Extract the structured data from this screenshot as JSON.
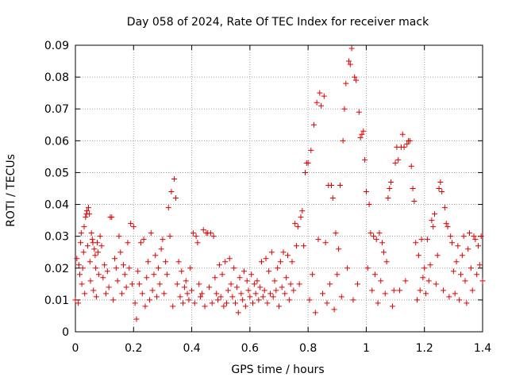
{
  "chart_data": {
    "type": "scatter",
    "title": "Day 058 of 2024, Rate Of TEC Index for receiver mack",
    "xlabel": "GPS time / hours",
    "ylabel": "ROTI / TECUs",
    "xlim": [
      0,
      1.4
    ],
    "ylim": [
      0,
      0.09
    ],
    "x_ticks": [
      0,
      0.2,
      0.4,
      0.6,
      0.8,
      1.0,
      1.2,
      1.4
    ],
    "x_tick_labels": [
      "0",
      "0.2",
      "0.4",
      "0.6",
      "0.8",
      "1",
      "1.2",
      "1.4"
    ],
    "y_ticks": [
      0,
      0.01,
      0.02,
      0.03,
      0.04,
      0.05,
      0.06,
      0.07,
      0.08,
      0.09
    ],
    "y_tick_labels": [
      "0",
      "0.01",
      "0.02",
      "0.03",
      "0.04",
      "0.05",
      "0.06",
      "0.07",
      "0.08",
      "0.09"
    ],
    "grid": true,
    "marker": "+",
    "series_color": "#e00000",
    "series": [
      {
        "name": "ROTI",
        "points": [
          [
            0.0,
            0.01
          ],
          [
            0.005,
            0.023
          ],
          [
            0.01,
            0.009
          ],
          [
            0.012,
            0.021
          ],
          [
            0.015,
            0.018
          ],
          [
            0.018,
            0.028
          ],
          [
            0.02,
            0.031
          ],
          [
            0.022,
            0.015
          ],
          [
            0.025,
            0.02
          ],
          [
            0.028,
            0.025
          ],
          [
            0.03,
            0.033
          ],
          [
            0.032,
            0.012
          ],
          [
            0.035,
            0.036
          ],
          [
            0.038,
            0.037
          ],
          [
            0.04,
            0.038
          ],
          [
            0.042,
            0.027
          ],
          [
            0.045,
            0.039
          ],
          [
            0.048,
            0.037
          ],
          [
            0.05,
            0.022
          ],
          [
            0.052,
            0.016
          ],
          [
            0.055,
            0.031
          ],
          [
            0.058,
            0.029
          ],
          [
            0.06,
            0.028
          ],
          [
            0.062,
            0.013
          ],
          [
            0.065,
            0.026
          ],
          [
            0.068,
            0.024
          ],
          [
            0.07,
            0.02
          ],
          [
            0.072,
            0.011
          ],
          [
            0.075,
            0.028
          ],
          [
            0.078,
            0.025
          ],
          [
            0.08,
            0.018
          ],
          [
            0.085,
            0.03
          ],
          [
            0.09,
            0.027
          ],
          [
            0.095,
            0.017
          ],
          [
            0.1,
            0.021
          ],
          [
            0.105,
            0.012
          ],
          [
            0.11,
            0.019
          ],
          [
            0.115,
            0.014
          ],
          [
            0.12,
            0.036
          ],
          [
            0.125,
            0.036
          ],
          [
            0.13,
            0.01
          ],
          [
            0.135,
            0.023
          ],
          [
            0.14,
            0.02
          ],
          [
            0.145,
            0.016
          ],
          [
            0.15,
            0.03
          ],
          [
            0.155,
            0.025
          ],
          [
            0.16,
            0.012
          ],
          [
            0.165,
            0.021
          ],
          [
            0.17,
            0.018
          ],
          [
            0.175,
            0.014
          ],
          [
            0.18,
            0.028
          ],
          [
            0.185,
            0.02
          ],
          [
            0.19,
            0.034
          ],
          [
            0.195,
            0.015
          ],
          [
            0.2,
            0.033
          ],
          [
            0.205,
            0.009
          ],
          [
            0.21,
            0.004
          ],
          [
            0.215,
            0.019
          ],
          [
            0.22,
            0.015
          ],
          [
            0.225,
            0.028
          ],
          [
            0.23,
            0.012
          ],
          [
            0.235,
            0.029
          ],
          [
            0.24,
            0.008
          ],
          [
            0.245,
            0.017
          ],
          [
            0.25,
            0.022
          ],
          [
            0.255,
            0.01
          ],
          [
            0.26,
            0.031
          ],
          [
            0.265,
            0.013
          ],
          [
            0.27,
            0.018
          ],
          [
            0.275,
            0.024
          ],
          [
            0.28,
            0.011
          ],
          [
            0.285,
            0.02
          ],
          [
            0.29,
            0.015
          ],
          [
            0.295,
            0.026
          ],
          [
            0.3,
            0.029
          ],
          [
            0.305,
            0.012
          ],
          [
            0.31,
            0.022
          ],
          [
            0.315,
            0.018
          ],
          [
            0.32,
            0.039
          ],
          [
            0.325,
            0.03
          ],
          [
            0.33,
            0.044
          ],
          [
            0.335,
            0.008
          ],
          [
            0.34,
            0.048
          ],
          [
            0.345,
            0.042
          ],
          [
            0.35,
            0.015
          ],
          [
            0.355,
            0.022
          ],
          [
            0.36,
            0.011
          ],
          [
            0.365,
            0.019
          ],
          [
            0.37,
            0.009
          ],
          [
            0.375,
            0.014
          ],
          [
            0.38,
            0.016
          ],
          [
            0.385,
            0.012
          ],
          [
            0.39,
            0.01
          ],
          [
            0.395,
            0.02
          ],
          [
            0.4,
            0.013
          ],
          [
            0.405,
            0.031
          ],
          [
            0.41,
            0.009
          ],
          [
            0.415,
            0.03
          ],
          [
            0.42,
            0.028
          ],
          [
            0.425,
            0.015
          ],
          [
            0.43,
            0.011
          ],
          [
            0.435,
            0.012
          ],
          [
            0.44,
            0.032
          ],
          [
            0.445,
            0.008
          ],
          [
            0.45,
            0.031
          ],
          [
            0.455,
            0.031
          ],
          [
            0.46,
            0.014
          ],
          [
            0.465,
            0.031
          ],
          [
            0.47,
            0.009
          ],
          [
            0.475,
            0.03
          ],
          [
            0.48,
            0.017
          ],
          [
            0.485,
            0.012
          ],
          [
            0.49,
            0.01
          ],
          [
            0.495,
            0.021
          ],
          [
            0.5,
            0.011
          ],
          [
            0.505,
            0.018
          ],
          [
            0.51,
            0.008
          ],
          [
            0.515,
            0.022
          ],
          [
            0.52,
            0.009
          ],
          [
            0.525,
            0.013
          ],
          [
            0.53,
            0.023
          ],
          [
            0.535,
            0.015
          ],
          [
            0.54,
            0.011
          ],
          [
            0.545,
            0.02
          ],
          [
            0.55,
            0.009
          ],
          [
            0.555,
            0.014
          ],
          [
            0.56,
            0.006
          ],
          [
            0.565,
            0.017
          ],
          [
            0.57,
            0.012
          ],
          [
            0.575,
            0.01
          ],
          [
            0.58,
            0.019
          ],
          [
            0.585,
            0.008
          ],
          [
            0.59,
            0.016
          ],
          [
            0.595,
            0.013
          ],
          [
            0.6,
            0.011
          ],
          [
            0.605,
            0.018
          ],
          [
            0.61,
            0.009
          ],
          [
            0.615,
            0.015
          ],
          [
            0.62,
            0.012
          ],
          [
            0.625,
            0.016
          ],
          [
            0.63,
            0.01
          ],
          [
            0.635,
            0.014
          ],
          [
            0.64,
            0.022
          ],
          [
            0.645,
            0.011
          ],
          [
            0.65,
            0.013
          ],
          [
            0.655,
            0.023
          ],
          [
            0.66,
            0.009
          ],
          [
            0.665,
            0.019
          ],
          [
            0.67,
            0.012
          ],
          [
            0.675,
            0.025
          ],
          [
            0.68,
            0.011
          ],
          [
            0.685,
            0.016
          ],
          [
            0.69,
            0.013
          ],
          [
            0.695,
            0.02
          ],
          [
            0.7,
            0.008
          ],
          [
            0.705,
            0.022
          ],
          [
            0.71,
            0.014
          ],
          [
            0.715,
            0.025
          ],
          [
            0.72,
            0.012
          ],
          [
            0.725,
            0.017
          ],
          [
            0.73,
            0.024
          ],
          [
            0.735,
            0.01
          ],
          [
            0.74,
            0.015
          ],
          [
            0.745,
            0.022
          ],
          [
            0.75,
            0.013
          ],
          [
            0.755,
            0.034
          ],
          [
            0.76,
            0.027
          ],
          [
            0.765,
            0.033
          ],
          [
            0.77,
            0.015
          ],
          [
            0.775,
            0.036
          ],
          [
            0.78,
            0.038
          ],
          [
            0.785,
            0.027
          ],
          [
            0.79,
            0.05
          ],
          [
            0.795,
            0.053
          ],
          [
            0.8,
            0.053
          ],
          [
            0.805,
            0.01
          ],
          [
            0.81,
            0.057
          ],
          [
            0.815,
            0.018
          ],
          [
            0.82,
            0.065
          ],
          [
            0.825,
            0.006
          ],
          [
            0.83,
            0.072
          ],
          [
            0.835,
            0.029
          ],
          [
            0.84,
            0.075
          ],
          [
            0.845,
            0.071
          ],
          [
            0.85,
            0.012
          ],
          [
            0.855,
            0.074
          ],
          [
            0.86,
            0.028
          ],
          [
            0.865,
            0.009
          ],
          [
            0.87,
            0.046
          ],
          [
            0.875,
            0.015
          ],
          [
            0.88,
            0.046
          ],
          [
            0.885,
            0.042
          ],
          [
            0.89,
            0.007
          ],
          [
            0.895,
            0.031
          ],
          [
            0.9,
            0.018
          ],
          [
            0.905,
            0.026
          ],
          [
            0.91,
            0.046
          ],
          [
            0.915,
            0.011
          ],
          [
            0.92,
            0.06
          ],
          [
            0.925,
            0.07
          ],
          [
            0.93,
            0.078
          ],
          [
            0.935,
            0.02
          ],
          [
            0.94,
            0.085
          ],
          [
            0.945,
            0.084
          ],
          [
            0.95,
            0.089
          ],
          [
            0.955,
            0.01
          ],
          [
            0.96,
            0.08
          ],
          [
            0.965,
            0.079
          ],
          [
            0.97,
            0.015
          ],
          [
            0.975,
            0.069
          ],
          [
            0.98,
            0.061
          ],
          [
            0.985,
            0.062
          ],
          [
            0.99,
            0.063
          ],
          [
            0.995,
            0.054
          ],
          [
            1.0,
            0.044
          ],
          [
            1.005,
            0.02
          ],
          [
            1.01,
            0.04
          ],
          [
            1.015,
            0.031
          ],
          [
            1.02,
            0.013
          ],
          [
            1.025,
            0.03
          ],
          [
            1.03,
            0.018
          ],
          [
            1.035,
            0.029
          ],
          [
            1.04,
            0.009
          ],
          [
            1.045,
            0.031
          ],
          [
            1.05,
            0.016
          ],
          [
            1.055,
            0.028
          ],
          [
            1.06,
            0.025
          ],
          [
            1.065,
            0.012
          ],
          [
            1.07,
            0.022
          ],
          [
            1.075,
            0.042
          ],
          [
            1.08,
            0.045
          ],
          [
            1.085,
            0.047
          ],
          [
            1.09,
            0.008
          ],
          [
            1.095,
            0.013
          ],
          [
            1.1,
            0.053
          ],
          [
            1.105,
            0.058
          ],
          [
            1.11,
            0.054
          ],
          [
            1.115,
            0.013
          ],
          [
            1.12,
            0.058
          ],
          [
            1.125,
            0.062
          ],
          [
            1.13,
            0.058
          ],
          [
            1.135,
            0.016
          ],
          [
            1.14,
            0.059
          ],
          [
            1.145,
            0.06
          ],
          [
            1.15,
            0.06
          ],
          [
            1.155,
            0.052
          ],
          [
            1.16,
            0.045
          ],
          [
            1.165,
            0.041
          ],
          [
            1.17,
            0.028
          ],
          [
            1.175,
            0.01
          ],
          [
            1.18,
            0.024
          ],
          [
            1.185,
            0.013
          ],
          [
            1.19,
            0.029
          ],
          [
            1.195,
            0.017
          ],
          [
            1.2,
            0.02
          ],
          [
            1.205,
            0.012
          ],
          [
            1.21,
            0.029
          ],
          [
            1.215,
            0.016
          ],
          [
            1.22,
            0.021
          ],
          [
            1.225,
            0.035
          ],
          [
            1.23,
            0.033
          ],
          [
            1.235,
            0.037
          ],
          [
            1.24,
            0.015
          ],
          [
            1.245,
            0.024
          ],
          [
            1.25,
            0.045
          ],
          [
            1.255,
            0.047
          ],
          [
            1.26,
            0.044
          ],
          [
            1.265,
            0.013
          ],
          [
            1.27,
            0.039
          ],
          [
            1.275,
            0.034
          ],
          [
            1.28,
            0.033
          ],
          [
            1.285,
            0.011
          ],
          [
            1.29,
            0.03
          ],
          [
            1.295,
            0.028
          ],
          [
            1.3,
            0.019
          ],
          [
            1.305,
            0.012
          ],
          [
            1.31,
            0.022
          ],
          [
            1.315,
            0.027
          ],
          [
            1.32,
            0.01
          ],
          [
            1.325,
            0.018
          ],
          [
            1.33,
            0.024
          ],
          [
            1.335,
            0.03
          ],
          [
            1.34,
            0.016
          ],
          [
            1.345,
            0.009
          ],
          [
            1.35,
            0.026
          ],
          [
            1.355,
            0.031
          ],
          [
            1.36,
            0.02
          ],
          [
            1.365,
            0.013
          ],
          [
            1.37,
            0.03
          ],
          [
            1.375,
            0.029
          ],
          [
            1.38,
            0.018
          ],
          [
            1.385,
            0.027
          ],
          [
            1.39,
            0.021
          ],
          [
            1.395,
            0.03
          ],
          [
            1.4,
            0.016
          ]
        ]
      }
    ]
  }
}
